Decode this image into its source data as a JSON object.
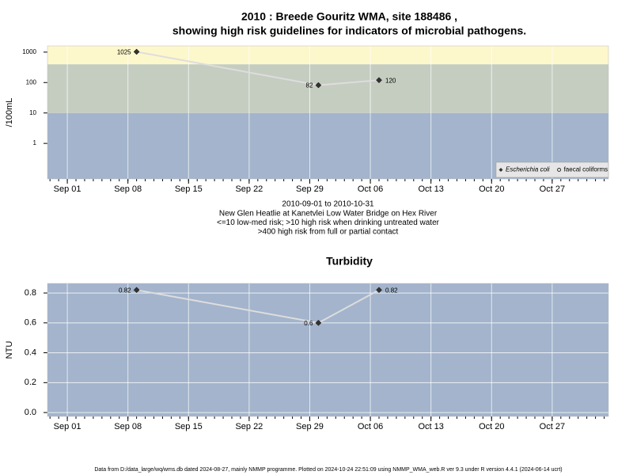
{
  "chart_data": [
    {
      "type": "line",
      "title": [
        "2010 : Breede Gouritz WMA, site 188486 ,",
        "showing high risk guidelines for indicators of microbial pathogens."
      ],
      "ylabel": "/100mL",
      "log_scale": true,
      "ylim": [
        0.068,
        1600
      ],
      "yticks": [
        1,
        10,
        100,
        1000
      ],
      "xlim": [
        "2010-08-29T17:00",
        "2010-11-02T12:00"
      ],
      "xticks": [
        {
          "value": "2010-09-01",
          "label": "Sep 01"
        },
        {
          "value": "2010-09-08",
          "label": "Sep 08"
        },
        {
          "value": "2010-09-15",
          "label": "Sep 15"
        },
        {
          "value": "2010-09-22",
          "label": "Sep 22"
        },
        {
          "value": "2010-09-29",
          "label": "Sep 29"
        },
        {
          "value": "2010-10-06",
          "label": "Oct 06"
        },
        {
          "value": "2010-10-13",
          "label": "Oct 13"
        },
        {
          "value": "2010-10-20",
          "label": "Oct 20"
        },
        {
          "value": "2010-10-27",
          "label": "Oct 27"
        }
      ],
      "x": [
        "2010-09-09",
        "2010-09-30",
        "2010-10-07"
      ],
      "series": [
        {
          "name": "Escherichia coli",
          "color": "#333333",
          "marker": "diamond",
          "values": [
            1025,
            82,
            120
          ]
        },
        {
          "name": "faecal coliforms",
          "color": "#333333",
          "marker": "circle",
          "values": [
            null,
            null,
            null
          ]
        }
      ],
      "line_color": "#dddddd",
      "thresholds": [
        10,
        400
      ],
      "band_colors": [
        "#a3b4cc",
        "#c5cdc1",
        "#fdf7cc"
      ],
      "grid": true,
      "legend": "bottom right",
      "notes": [
        "2010-09-01 to 2010-10-31",
        "New Glen Heatlie at Kanetvlei Low Water Bridge on Hex River",
        "<=10 low-med risk; >10 high risk when drinking untreated water",
        ">400 high risk from full or partial contact"
      ]
    },
    {
      "type": "line",
      "title": [
        "Turbidity"
      ],
      "ylabel": "NTU",
      "log_scale": false,
      "ylim": [
        -0.026,
        0.864
      ],
      "yticks": [
        {
          "value": 0,
          "label": "0.0"
        },
        0.2,
        0.4,
        0.6,
        0.8
      ],
      "xlim": [
        "2010-08-29T17:00",
        "2010-11-02T12:00"
      ],
      "xticks": [
        {
          "value": "2010-09-01",
          "label": "Sep 01"
        },
        {
          "value": "2010-09-08",
          "label": "Sep 08"
        },
        {
          "value": "2010-09-15",
          "label": "Sep 15"
        },
        {
          "value": "2010-09-22",
          "label": "Sep 22"
        },
        {
          "value": "2010-09-29",
          "label": "Sep 29"
        },
        {
          "value": "2010-10-06",
          "label": "Oct 06"
        },
        {
          "value": "2010-10-13",
          "label": "Oct 13"
        },
        {
          "value": "2010-10-20",
          "label": "Oct 20"
        },
        {
          "value": "2010-10-27",
          "label": "Oct 27"
        }
      ],
      "x": [
        "2010-09-09",
        "2010-09-30",
        "2010-10-07"
      ],
      "series": [
        {
          "name": "Turbidity",
          "color": "#333333",
          "marker": "diamond",
          "values": [
            0.82,
            0.6,
            0.82
          ]
        }
      ],
      "line_color": "#dddddd",
      "background": "#a3b4cc",
      "grid": true
    }
  ],
  "footer": "Data from D:/data_large/wq/wms.db dated 2024-08-27, mainly NMMP programme. Plotted on 2024-10-24 22:51:09 using NMMP_WMA_web.R ver 9.3 under R version 4.4.1 (2024-06-14 ucrt)"
}
